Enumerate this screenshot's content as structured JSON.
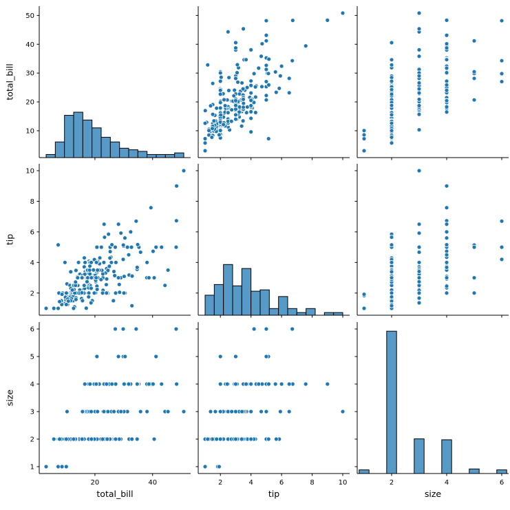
{
  "chart_data": {
    "type": "scatter_matrix",
    "title": "",
    "style": {
      "background": "#ffffff",
      "dot_color": "#1f77b4",
      "dot_edge_color": "#ffffff",
      "hist_fill": "#5799c7",
      "hist_edge": "#000000",
      "axis_color": "#000000",
      "tick_label_color": "#000000"
    },
    "variables": [
      {
        "name": "total_bill",
        "label": "total_bill",
        "min": 0.68,
        "max": 53.2,
        "ticks_x": [
          20,
          40
        ],
        "ticks_y": [
          10,
          20,
          30,
          40,
          50
        ]
      },
      {
        "name": "tip",
        "label": "tip",
        "min": 0.55,
        "max": 10.45,
        "ticks_x": [
          2,
          4,
          6,
          8,
          10
        ],
        "ticks_y": [
          2,
          4,
          6,
          8,
          10
        ]
      },
      {
        "name": "size",
        "label": "size",
        "min": 0.75,
        "max": 6.25,
        "ticks_x": [
          2,
          4,
          6
        ],
        "ticks_y": [
          1,
          2,
          3,
          4,
          5,
          6
        ]
      }
    ],
    "histograms": {
      "total_bill": {
        "start": 3.07,
        "binwidth": 3.183,
        "counts": [
          2,
          10,
          27,
          29,
          24,
          19,
          13,
          10,
          6,
          5,
          4,
          2,
          2,
          2,
          3
        ],
        "display_fraction": 0.3
      },
      "tip": {
        "start": 1.0,
        "binwidth": 0.6,
        "counts": [
          15,
          23,
          38,
          22,
          35,
          18,
          19,
          5,
          14,
          5,
          2,
          5,
          0,
          2,
          2
        ],
        "display_fraction": 0.335
      },
      "size": {
        "centers": [
          1,
          2,
          3,
          4,
          5,
          6
        ],
        "barwidth": 0.36,
        "counts": [
          4,
          156,
          38,
          37,
          5,
          4
        ],
        "display_fraction": 0.94
      }
    },
    "points": [
      [
        16.99,
        1.01,
        2
      ],
      [
        10.34,
        1.66,
        3
      ],
      [
        21.01,
        3.5,
        3
      ],
      [
        23.68,
        3.31,
        2
      ],
      [
        24.59,
        3.61,
        4
      ],
      [
        25.29,
        4.71,
        4
      ],
      [
        8.77,
        2.0,
        2
      ],
      [
        26.88,
        3.12,
        4
      ],
      [
        15.04,
        1.96,
        2
      ],
      [
        14.78,
        3.23,
        2
      ],
      [
        10.27,
        1.71,
        2
      ],
      [
        35.26,
        5.0,
        4
      ],
      [
        15.42,
        1.57,
        2
      ],
      [
        18.43,
        3.0,
        4
      ],
      [
        14.83,
        3.02,
        2
      ],
      [
        21.58,
        3.92,
        2
      ],
      [
        10.33,
        1.67,
        3
      ],
      [
        16.29,
        3.71,
        3
      ],
      [
        16.97,
        3.5,
        3
      ],
      [
        20.65,
        3.35,
        3
      ],
      [
        17.92,
        4.08,
        2
      ],
      [
        20.29,
        2.75,
        2
      ],
      [
        15.77,
        2.23,
        2
      ],
      [
        39.42,
        7.58,
        4
      ],
      [
        19.82,
        3.18,
        2
      ],
      [
        17.81,
        2.34,
        4
      ],
      [
        13.37,
        2.0,
        2
      ],
      [
        12.69,
        2.0,
        2
      ],
      [
        21.7,
        4.3,
        2
      ],
      [
        19.65,
        3.0,
        2
      ],
      [
        9.55,
        1.45,
        2
      ],
      [
        18.35,
        2.5,
        4
      ],
      [
        15.06,
        3.0,
        2
      ],
      [
        20.69,
        2.45,
        4
      ],
      [
        17.78,
        3.27,
        2
      ],
      [
        24.06,
        3.6,
        3
      ],
      [
        16.31,
        2.0,
        3
      ],
      [
        16.93,
        3.07,
        3
      ],
      [
        18.69,
        2.31,
        3
      ],
      [
        31.27,
        5.0,
        3
      ],
      [
        16.04,
        2.24,
        3
      ],
      [
        17.46,
        2.54,
        2
      ],
      [
        13.94,
        3.06,
        2
      ],
      [
        9.68,
        1.32,
        2
      ],
      [
        30.4,
        5.6,
        4
      ],
      [
        18.29,
        3.0,
        2
      ],
      [
        22.23,
        5.0,
        2
      ],
      [
        32.4,
        6.0,
        4
      ],
      [
        28.55,
        2.05,
        3
      ],
      [
        18.04,
        3.0,
        2
      ],
      [
        12.54,
        2.5,
        2
      ],
      [
        10.29,
        2.6,
        2
      ],
      [
        34.81,
        5.2,
        4
      ],
      [
        9.94,
        1.56,
        2
      ],
      [
        25.56,
        4.34,
        4
      ],
      [
        19.49,
        3.51,
        2
      ],
      [
        38.01,
        3.0,
        4
      ],
      [
        26.41,
        1.5,
        2
      ],
      [
        11.24,
        1.76,
        2
      ],
      [
        48.27,
        6.73,
        4
      ],
      [
        20.29,
        3.21,
        2
      ],
      [
        13.81,
        2.0,
        2
      ],
      [
        11.02,
        1.98,
        2
      ],
      [
        18.29,
        3.76,
        4
      ],
      [
        17.59,
        2.64,
        3
      ],
      [
        20.08,
        3.15,
        3
      ],
      [
        16.45,
        2.47,
        2
      ],
      [
        3.07,
        1.0,
        1
      ],
      [
        20.23,
        2.01,
        2
      ],
      [
        15.01,
        2.09,
        2
      ],
      [
        12.02,
        1.97,
        2
      ],
      [
        17.07,
        3.0,
        3
      ],
      [
        26.86,
        3.14,
        2
      ],
      [
        25.28,
        5.0,
        2
      ],
      [
        14.73,
        2.2,
        2
      ],
      [
        10.51,
        1.25,
        2
      ],
      [
        17.92,
        3.08,
        2
      ],
      [
        27.2,
        4.0,
        4
      ],
      [
        22.76,
        3.0,
        2
      ],
      [
        17.29,
        2.71,
        2
      ],
      [
        19.44,
        3.0,
        2
      ],
      [
        16.66,
        3.4,
        2
      ],
      [
        10.07,
        1.83,
        1
      ],
      [
        32.68,
        5.0,
        2
      ],
      [
        15.98,
        2.03,
        2
      ],
      [
        34.83,
        5.17,
        4
      ],
      [
        13.03,
        2.0,
        2
      ],
      [
        18.28,
        4.0,
        2
      ],
      [
        24.71,
        5.85,
        2
      ],
      [
        21.16,
        3.0,
        2
      ],
      [
        28.97,
        3.0,
        2
      ],
      [
        22.49,
        3.5,
        2
      ],
      [
        5.75,
        1.0,
        2
      ],
      [
        16.32,
        4.3,
        2
      ],
      [
        22.75,
        3.25,
        2
      ],
      [
        40.17,
        4.73,
        4
      ],
      [
        27.28,
        4.0,
        2
      ],
      [
        12.03,
        1.5,
        2
      ],
      [
        21.01,
        3.0,
        2
      ],
      [
        12.46,
        1.5,
        2
      ],
      [
        11.35,
        2.5,
        2
      ],
      [
        15.38,
        3.0,
        2
      ],
      [
        44.3,
        2.5,
        3
      ],
      [
        22.42,
        3.48,
        2
      ],
      [
        20.92,
        4.08,
        2
      ],
      [
        15.36,
        1.64,
        2
      ],
      [
        20.49,
        4.06,
        2
      ],
      [
        25.21,
        4.29,
        2
      ],
      [
        18.24,
        3.76,
        2
      ],
      [
        14.31,
        4.0,
        2
      ],
      [
        14.0,
        3.0,
        2
      ],
      [
        7.25,
        1.0,
        1
      ],
      [
        38.07,
        4.0,
        3
      ],
      [
        23.95,
        2.55,
        2
      ],
      [
        25.71,
        4.0,
        3
      ],
      [
        17.31,
        3.5,
        2
      ],
      [
        29.93,
        5.07,
        4
      ],
      [
        10.65,
        1.5,
        2
      ],
      [
        12.43,
        1.8,
        2
      ],
      [
        24.08,
        2.92,
        4
      ],
      [
        11.69,
        2.31,
        2
      ],
      [
        13.42,
        1.68,
        2
      ],
      [
        14.26,
        2.5,
        2
      ],
      [
        15.95,
        2.0,
        2
      ],
      [
        12.48,
        2.52,
        2
      ],
      [
        29.8,
        4.2,
        6
      ],
      [
        8.52,
        1.48,
        2
      ],
      [
        14.52,
        2.0,
        2
      ],
      [
        11.38,
        2.0,
        2
      ],
      [
        22.82,
        2.18,
        3
      ],
      [
        19.08,
        1.5,
        2
      ],
      [
        20.27,
        2.83,
        2
      ],
      [
        11.17,
        1.5,
        2
      ],
      [
        12.26,
        2.0,
        2
      ],
      [
        18.26,
        3.25,
        2
      ],
      [
        8.51,
        1.25,
        2
      ],
      [
        10.33,
        2.0,
        2
      ],
      [
        14.15,
        2.0,
        2
      ],
      [
        16.0,
        2.0,
        2
      ],
      [
        13.16,
        2.75,
        2
      ],
      [
        17.47,
        3.5,
        2
      ],
      [
        34.3,
        6.7,
        6
      ],
      [
        41.19,
        5.0,
        5
      ],
      [
        27.05,
        5.0,
        6
      ],
      [
        16.43,
        2.3,
        2
      ],
      [
        8.35,
        1.5,
        2
      ],
      [
        18.64,
        1.36,
        3
      ],
      [
        11.87,
        1.63,
        2
      ],
      [
        9.78,
        1.73,
        2
      ],
      [
        7.51,
        2.0,
        2
      ],
      [
        14.07,
        2.5,
        2
      ],
      [
        13.13,
        2.0,
        2
      ],
      [
        17.26,
        2.74,
        3
      ],
      [
        24.55,
        2.0,
        4
      ],
      [
        19.77,
        2.0,
        4
      ],
      [
        29.85,
        5.14,
        5
      ],
      [
        48.17,
        5.0,
        6
      ],
      [
        25.0,
        3.75,
        4
      ],
      [
        13.39,
        2.61,
        2
      ],
      [
        16.49,
        2.0,
        4
      ],
      [
        21.5,
        3.5,
        4
      ],
      [
        12.66,
        2.5,
        2
      ],
      [
        16.21,
        2.0,
        3
      ],
      [
        13.81,
        2.0,
        2
      ],
      [
        17.51,
        3.0,
        2
      ],
      [
        24.52,
        3.48,
        3
      ],
      [
        20.76,
        2.24,
        2
      ],
      [
        31.71,
        4.5,
        4
      ],
      [
        10.59,
        1.61,
        2
      ],
      [
        10.63,
        2.0,
        2
      ],
      [
        50.81,
        10.0,
        3
      ],
      [
        15.81,
        3.16,
        2
      ],
      [
        7.25,
        5.15,
        2
      ],
      [
        31.85,
        3.18,
        2
      ],
      [
        16.82,
        4.0,
        2
      ],
      [
        32.9,
        3.11,
        2
      ],
      [
        17.89,
        2.0,
        2
      ],
      [
        14.48,
        2.0,
        2
      ],
      [
        9.6,
        4.0,
        2
      ],
      [
        34.63,
        3.55,
        2
      ],
      [
        34.65,
        3.68,
        4
      ],
      [
        23.33,
        5.65,
        2
      ],
      [
        45.35,
        3.5,
        3
      ],
      [
        23.17,
        6.5,
        4
      ],
      [
        40.55,
        3.0,
        2
      ],
      [
        20.69,
        5.0,
        5
      ],
      [
        20.9,
        3.5,
        3
      ],
      [
        30.46,
        2.0,
        5
      ],
      [
        18.15,
        3.5,
        3
      ],
      [
        23.1,
        4.0,
        3
      ],
      [
        15.69,
        1.5,
        2
      ],
      [
        19.81,
        4.19,
        2
      ],
      [
        28.44,
        2.56,
        2
      ],
      [
        15.48,
        2.02,
        2
      ],
      [
        16.58,
        4.0,
        2
      ],
      [
        7.56,
        1.44,
        2
      ],
      [
        10.34,
        2.0,
        2
      ],
      [
        43.11,
        5.0,
        4
      ],
      [
        13.0,
        2.0,
        2
      ],
      [
        13.51,
        2.0,
        2
      ],
      [
        18.71,
        4.0,
        3
      ],
      [
        12.74,
        2.01,
        2
      ],
      [
        13.0,
        2.0,
        2
      ],
      [
        16.4,
        2.5,
        2
      ],
      [
        20.53,
        4.0,
        4
      ],
      [
        16.47,
        3.23,
        3
      ],
      [
        26.59,
        3.41,
        3
      ],
      [
        38.73,
        3.0,
        4
      ],
      [
        24.27,
        2.03,
        2
      ],
      [
        12.76,
        2.23,
        2
      ],
      [
        30.06,
        2.0,
        3
      ],
      [
        25.89,
        5.16,
        4
      ],
      [
        48.33,
        9.0,
        4
      ],
      [
        13.27,
        2.5,
        2
      ],
      [
        28.17,
        6.5,
        3
      ],
      [
        12.9,
        1.1,
        2
      ],
      [
        28.15,
        3.0,
        5
      ],
      [
        11.59,
        1.5,
        2
      ],
      [
        7.74,
        1.44,
        2
      ],
      [
        30.14,
        3.09,
        4
      ],
      [
        12.16,
        2.2,
        2
      ],
      [
        13.42,
        3.48,
        2
      ],
      [
        8.58,
        1.92,
        1
      ],
      [
        15.98,
        3.0,
        3
      ],
      [
        13.42,
        1.58,
        2
      ],
      [
        16.27,
        2.5,
        2
      ],
      [
        10.09,
        2.0,
        2
      ],
      [
        20.45,
        3.0,
        4
      ],
      [
        13.28,
        2.72,
        2
      ],
      [
        22.12,
        2.88,
        2
      ],
      [
        24.01,
        2.0,
        4
      ],
      [
        15.69,
        3.0,
        3
      ],
      [
        11.61,
        3.39,
        2
      ],
      [
        10.77,
        1.47,
        2
      ],
      [
        15.53,
        3.0,
        2
      ],
      [
        10.07,
        1.25,
        2
      ],
      [
        12.6,
        1.0,
        2
      ],
      [
        32.83,
        1.17,
        2
      ],
      [
        35.83,
        4.67,
        3
      ],
      [
        29.03,
        5.92,
        3
      ],
      [
        27.18,
        2.0,
        2
      ],
      [
        22.67,
        2.0,
        2
      ],
      [
        17.82,
        1.75,
        2
      ],
      [
        18.78,
        3.0,
        2
      ]
    ]
  }
}
